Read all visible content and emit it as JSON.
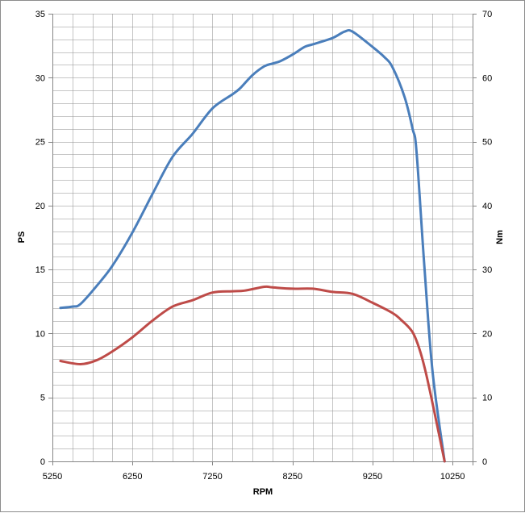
{
  "chart_data": {
    "type": "line",
    "title": "",
    "xlabel": "RPM",
    "ylabel": "PS",
    "y2label": "Nm",
    "xlim": [
      5250,
      10500
    ],
    "ylim": [
      0,
      35
    ],
    "y2lim": [
      0,
      70
    ],
    "x_ticks": [
      5250,
      6250,
      7250,
      8250,
      9250,
      10250
    ],
    "x_tick_labels": [
      "5250",
      "6250",
      "7250",
      "8250",
      "9250",
      "10250"
    ],
    "y_ticks": [
      0,
      5,
      10,
      15,
      20,
      25,
      30,
      35
    ],
    "y_tick_labels": [
      "0",
      "5",
      "10",
      "15",
      "20",
      "25",
      "30",
      "35"
    ],
    "y2_ticks": [
      0,
      10,
      20,
      30,
      40,
      50,
      60,
      70
    ],
    "y2_tick_labels": [
      "0",
      "10",
      "20",
      "30",
      "40",
      "50",
      "60",
      "70"
    ],
    "grid": true,
    "x_minor_step": 250,
    "y_minor_step": 1,
    "legend": "none",
    "series": [
      {
        "axis": "left",
        "color": "#4a7ebb",
        "x": [
          5350,
          5500,
          5600,
          5800,
          6000,
          6250,
          6500,
          6750,
          7000,
          7250,
          7500,
          7600,
          7750,
          7900,
          8000,
          8100,
          8250,
          8400,
          8500,
          8750,
          8900,
          9000,
          9250,
          9400,
          9500,
          9650,
          9750,
          9800,
          9900,
          10000,
          10150
        ],
        "y": [
          12.0,
          12.1,
          12.3,
          13.7,
          15.3,
          17.9,
          20.9,
          23.8,
          25.6,
          27.6,
          28.7,
          29.2,
          30.2,
          30.9,
          31.1,
          31.3,
          31.8,
          32.4,
          32.6,
          33.1,
          33.6,
          33.6,
          32.4,
          31.6,
          30.8,
          28.5,
          26.0,
          24.2,
          15.0,
          7.0,
          0.0
        ]
      },
      {
        "axis": "left",
        "color": "#be4b48",
        "x": [
          5350,
          5600,
          5800,
          6000,
          6250,
          6500,
          6750,
          7000,
          7250,
          7500,
          7650,
          7900,
          8000,
          8250,
          8500,
          8750,
          9000,
          9250,
          9500,
          9600,
          9750,
          9850,
          9950,
          10150
        ],
        "y": [
          7.85,
          7.6,
          7.9,
          8.6,
          9.7,
          11.0,
          12.1,
          12.6,
          13.2,
          13.3,
          13.35,
          13.65,
          13.6,
          13.5,
          13.5,
          13.25,
          13.1,
          12.4,
          11.6,
          11.1,
          10.1,
          8.5,
          6.0,
          0.0
        ]
      }
    ]
  }
}
